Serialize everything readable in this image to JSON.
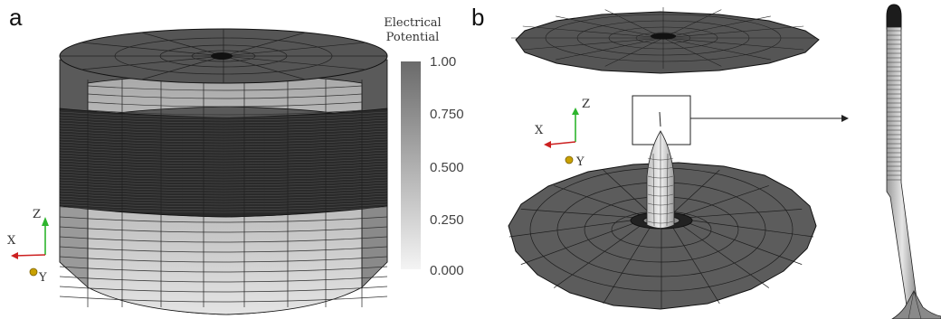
{
  "panels": [
    {
      "label": "a"
    },
    {
      "label": "b"
    }
  ],
  "colorbar": {
    "title_line1": "Electrical",
    "title_line2": "Potential",
    "ticks": [
      "1.00",
      "0.750",
      "0.500",
      "0.250",
      "0.000"
    ],
    "gradient_top": "#6a6a6a",
    "gradient_bottom": "#f4f4f4"
  },
  "axes": {
    "z": "Z",
    "x": "X",
    "y": "Y",
    "colors": {
      "z": "#2db52d",
      "x": "#cc2020",
      "y": "#c8a000"
    }
  },
  "colors": {
    "mesh_dark": "#585858",
    "mesh_light": "#d8d8d8",
    "mesh_band": "#2a2a2a",
    "edge": "#111111"
  }
}
